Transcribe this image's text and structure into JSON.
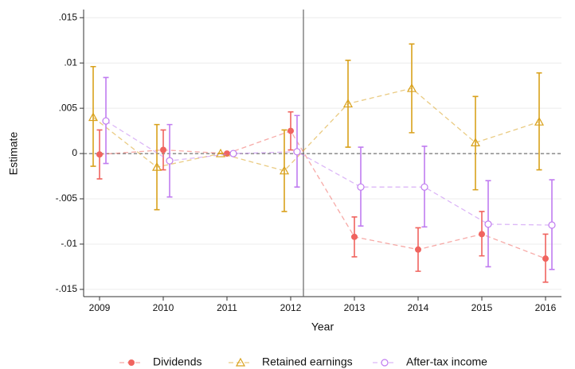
{
  "chart_data": {
    "type": "errorbar-line",
    "x_label": "Year",
    "y_label": "Estimate",
    "x": [
      2009,
      2010,
      2011,
      2012,
      2013,
      2014,
      2015,
      2016
    ],
    "series": [
      {
        "name": "Dividends",
        "color": "#f0645f",
        "marker": "circle",
        "values": [
          -0.0001,
          0.0004,
          0,
          0.0025,
          -0.0092,
          -0.0106,
          -0.0089,
          -0.0116
        ],
        "lower": [
          -0.0028,
          -0.0018,
          0,
          0.0004,
          -0.0114,
          -0.013,
          -0.0113,
          -0.0142
        ],
        "upper": [
          0.0026,
          0.0026,
          0,
          0.0046,
          -0.007,
          -0.0082,
          -0.0064,
          -0.0089
        ]
      },
      {
        "name": "Retained earnings",
        "color": "#d9a11c",
        "marker": "triangle",
        "values": [
          0.004,
          -0.0015,
          0,
          -0.0019,
          0.0055,
          0.0072,
          0.0012,
          0.0035
        ],
        "lower": [
          -0.0014,
          -0.0062,
          0,
          -0.0064,
          0.0007,
          0.0023,
          -0.004,
          -0.0018
        ],
        "upper": [
          0.0096,
          0.0032,
          0,
          0.0026,
          0.0103,
          0.0121,
          0.0063,
          0.0089
        ]
      },
      {
        "name": "After-tax income",
        "color": "#c07cf0",
        "marker": "hollow-circle",
        "values": [
          0.0036,
          -0.0008,
          0,
          0.0002,
          -0.0037,
          -0.0037,
          -0.0078,
          -0.0079
        ],
        "lower": [
          -0.0011,
          -0.0048,
          0,
          -0.0037,
          -0.008,
          -0.0081,
          -0.0125,
          -0.0128
        ],
        "upper": [
          0.0084,
          0.0032,
          0,
          0.0042,
          0.0007,
          0.0008,
          -0.003,
          -0.0029
        ]
      }
    ],
    "xlim": [
      2008.75,
      2016.25
    ],
    "xticks": [
      2009,
      2010,
      2011,
      2012,
      2013,
      2014,
      2015,
      2016
    ],
    "ylim": [
      -0.0158,
      0.0159
    ],
    "yticks": [
      {
        "value": 0.015,
        "label": ".015"
      },
      {
        "value": 0.01,
        "label": ".01"
      },
      {
        "value": 0.005,
        "label": ".005"
      },
      0,
      {
        "value": -0.005,
        "label": "-.005"
      },
      {
        "value": -0.01,
        "label": "-.01"
      },
      {
        "value": -0.015,
        "label": "-.015"
      }
    ],
    "hline": 0,
    "vline": 2012.2,
    "grid": true,
    "legend": "bottom"
  }
}
